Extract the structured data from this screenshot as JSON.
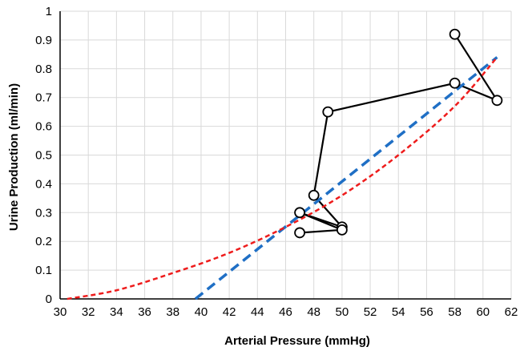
{
  "chart_data": {
    "type": "scatter",
    "xlabel": "Arterial Pressure (mmHg)",
    "ylabel": "Urine Production (ml/min)",
    "xlim": [
      30,
      62
    ],
    "ylim": [
      0,
      1
    ],
    "x_ticks": [
      "30",
      "32",
      "34",
      "36",
      "38",
      "40",
      "42",
      "44",
      "46",
      "48",
      "50",
      "52",
      "54",
      "56",
      "58",
      "60",
      "62"
    ],
    "y_ticks": [
      "0",
      "0.1",
      "0.2",
      "0.3",
      "0.4",
      "0.5",
      "0.6",
      "0.7",
      "0.8",
      "0.9",
      "1"
    ],
    "grid": true,
    "legend": "none",
    "series": [
      {
        "style": "solid-line-with-open-circles",
        "color": "#000000",
        "x": [
          58,
          61,
          58,
          49,
          48,
          50,
          47,
          50,
          47
        ],
        "y": [
          0.92,
          0.69,
          0.75,
          0.65,
          0.36,
          0.25,
          0.3,
          0.24,
          0.23
        ]
      },
      {
        "style": "dashed-line",
        "color": "#1f6fc5",
        "x": [
          39.6,
          61
        ],
        "y": [
          0.0,
          0.84
        ]
      },
      {
        "style": "dotted-curve",
        "color": "#ee1c1c",
        "x": [
          30.5,
          34,
          38,
          42,
          46,
          50,
          54,
          58,
          61
        ],
        "y": [
          0.0,
          0.03,
          0.09,
          0.16,
          0.25,
          0.36,
          0.5,
          0.67,
          0.84
        ]
      }
    ]
  }
}
